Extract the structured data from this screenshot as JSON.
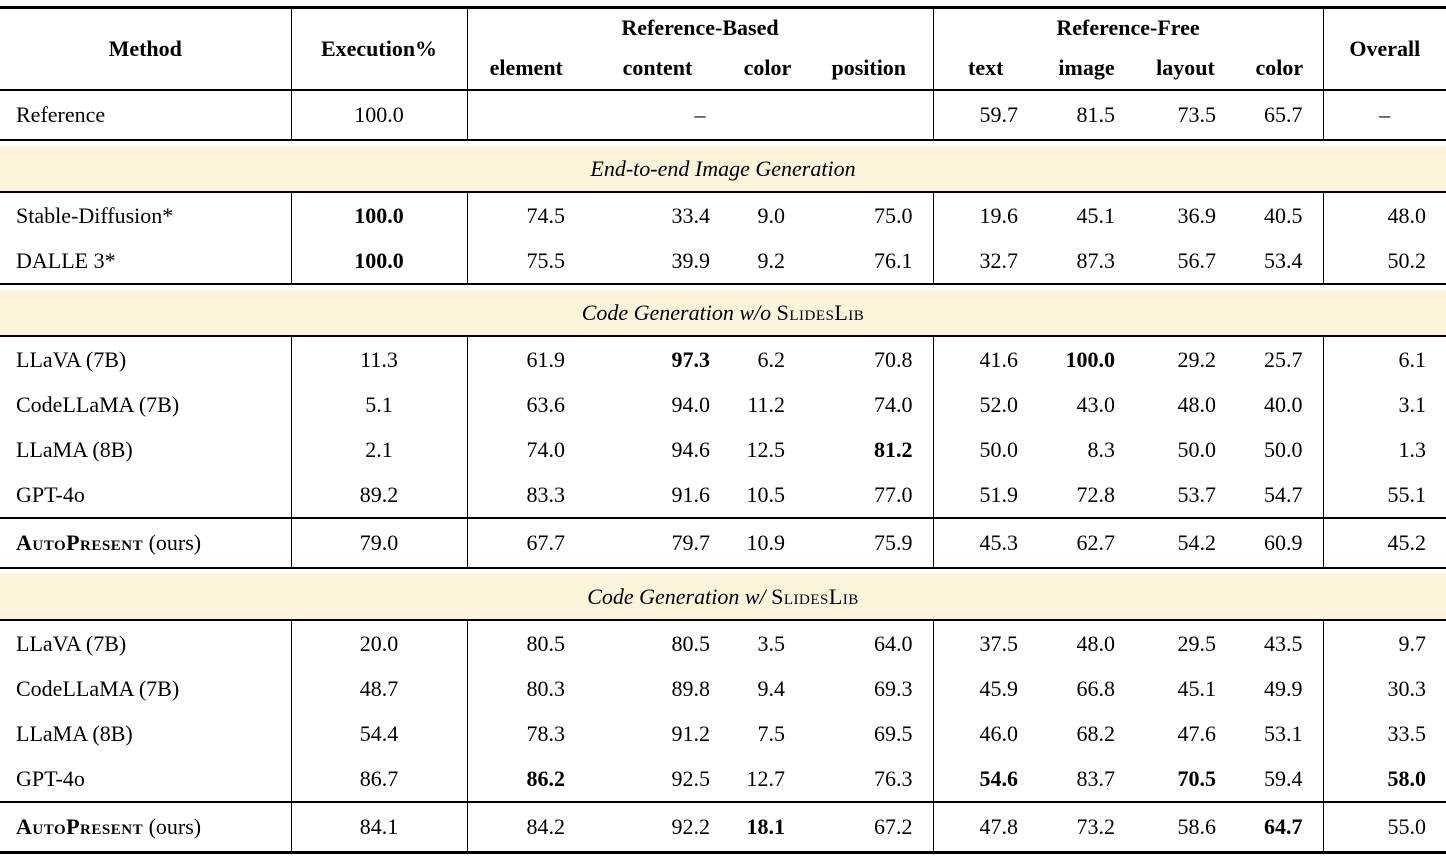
{
  "colors": {
    "band_bg": "#fbf3da",
    "rule": "#000000",
    "text_color": "#000000",
    "page_bg": "#ffffff"
  },
  "header": {
    "method": "Method",
    "execution": "Execution%",
    "ref_based": {
      "label": "Reference-Based",
      "cols": [
        "element",
        "content",
        "color",
        "position"
      ]
    },
    "ref_free": {
      "label": "Reference-Free",
      "cols": [
        "text",
        "image",
        "layout",
        "color"
      ]
    },
    "overall": "Overall"
  },
  "reference_row": {
    "method": "Reference",
    "execution": "100.0",
    "ref_based_merged": "–",
    "ref_free": [
      "59.7",
      "81.5",
      "73.5",
      "65.7"
    ],
    "overall": "–"
  },
  "sections": [
    {
      "title_parts": [
        {
          "text": "End-to-end Image Generation",
          "style": "italic"
        }
      ],
      "groups": [
        [
          {
            "method": [
              {
                "text": "Stable-Diffusion*",
                "style": "plain"
              }
            ],
            "cells": [
              {
                "v": "100.0",
                "b": true
              },
              {
                "v": "74.5"
              },
              {
                "v": "33.4"
              },
              {
                "v": "9.0"
              },
              {
                "v": "75.0"
              },
              {
                "v": "19.6"
              },
              {
                "v": "45.1"
              },
              {
                "v": "36.9"
              },
              {
                "v": "40.5"
              },
              {
                "v": "48.0"
              }
            ]
          },
          {
            "method": [
              {
                "text": "DALLE 3*",
                "style": "plain"
              }
            ],
            "cells": [
              {
                "v": "100.0",
                "b": true
              },
              {
                "v": "75.5"
              },
              {
                "v": "39.9"
              },
              {
                "v": "9.2"
              },
              {
                "v": "76.1"
              },
              {
                "v": "32.7"
              },
              {
                "v": "87.3"
              },
              {
                "v": "56.7"
              },
              {
                "v": "53.4"
              },
              {
                "v": "50.2"
              }
            ]
          }
        ]
      ]
    },
    {
      "title_parts": [
        {
          "text": "Code Generation w/o ",
          "style": "italic"
        },
        {
          "text": "SlidesLib",
          "style": "smallcaps"
        }
      ],
      "groups": [
        [
          {
            "method": [
              {
                "text": "LLaVA (7B)",
                "style": "plain"
              }
            ],
            "cells": [
              {
                "v": "11.3"
              },
              {
                "v": "61.9"
              },
              {
                "v": "97.3",
                "b": true
              },
              {
                "v": "6.2"
              },
              {
                "v": "70.8"
              },
              {
                "v": "41.6"
              },
              {
                "v": "100.0",
                "b": true
              },
              {
                "v": "29.2"
              },
              {
                "v": "25.7"
              },
              {
                "v": "6.1"
              }
            ]
          },
          {
            "method": [
              {
                "text": "CodeLLaMA (7B)",
                "style": "plain"
              }
            ],
            "cells": [
              {
                "v": "5.1"
              },
              {
                "v": "63.6"
              },
              {
                "v": "94.0"
              },
              {
                "v": "11.2"
              },
              {
                "v": "74.0"
              },
              {
                "v": "52.0"
              },
              {
                "v": "43.0"
              },
              {
                "v": "48.0"
              },
              {
                "v": "40.0"
              },
              {
                "v": "3.1"
              }
            ]
          },
          {
            "method": [
              {
                "text": "LLaMA (8B)",
                "style": "plain"
              }
            ],
            "cells": [
              {
                "v": "2.1"
              },
              {
                "v": "74.0"
              },
              {
                "v": "94.6"
              },
              {
                "v": "12.5"
              },
              {
                "v": "81.2",
                "b": true
              },
              {
                "v": "50.0"
              },
              {
                "v": "8.3"
              },
              {
                "v": "50.0"
              },
              {
                "v": "50.0"
              },
              {
                "v": "1.3"
              }
            ]
          },
          {
            "method": [
              {
                "text": "GPT-4o",
                "style": "plain"
              }
            ],
            "cells": [
              {
                "v": "89.2"
              },
              {
                "v": "83.3"
              },
              {
                "v": "91.6"
              },
              {
                "v": "10.5"
              },
              {
                "v": "77.0"
              },
              {
                "v": "51.9"
              },
              {
                "v": "72.8"
              },
              {
                "v": "53.7"
              },
              {
                "v": "54.7"
              },
              {
                "v": "55.1"
              }
            ]
          }
        ],
        [
          {
            "method": [
              {
                "text": "AutoPresent",
                "style": "bold-smallcaps"
              },
              {
                "text": " (ours)",
                "style": "plain"
              }
            ],
            "cells": [
              {
                "v": "79.0"
              },
              {
                "v": "67.7"
              },
              {
                "v": "79.7"
              },
              {
                "v": "10.9"
              },
              {
                "v": "75.9"
              },
              {
                "v": "45.3"
              },
              {
                "v": "62.7"
              },
              {
                "v": "54.2"
              },
              {
                "v": "60.9"
              },
              {
                "v": "45.2"
              }
            ]
          }
        ]
      ]
    },
    {
      "title_parts": [
        {
          "text": "Code Generation w/ ",
          "style": "italic"
        },
        {
          "text": "SlidesLib",
          "style": "smallcaps"
        }
      ],
      "groups": [
        [
          {
            "method": [
              {
                "text": "LLaVA (7B)",
                "style": "plain"
              }
            ],
            "cells": [
              {
                "v": "20.0"
              },
              {
                "v": "80.5"
              },
              {
                "v": "80.5"
              },
              {
                "v": "3.5"
              },
              {
                "v": "64.0"
              },
              {
                "v": "37.5"
              },
              {
                "v": "48.0"
              },
              {
                "v": "29.5"
              },
              {
                "v": "43.5"
              },
              {
                "v": "9.7"
              }
            ]
          },
          {
            "method": [
              {
                "text": "CodeLLaMA (7B)",
                "style": "plain"
              }
            ],
            "cells": [
              {
                "v": "48.7"
              },
              {
                "v": "80.3"
              },
              {
                "v": "89.8"
              },
              {
                "v": "9.4"
              },
              {
                "v": "69.3"
              },
              {
                "v": "45.9"
              },
              {
                "v": "66.8"
              },
              {
                "v": "45.1"
              },
              {
                "v": "49.9"
              },
              {
                "v": "30.3"
              }
            ]
          },
          {
            "method": [
              {
                "text": "LLaMA (8B)",
                "style": "plain"
              }
            ],
            "cells": [
              {
                "v": "54.4"
              },
              {
                "v": "78.3"
              },
              {
                "v": "91.2"
              },
              {
                "v": "7.5"
              },
              {
                "v": "69.5"
              },
              {
                "v": "46.0"
              },
              {
                "v": "68.2"
              },
              {
                "v": "47.6"
              },
              {
                "v": "53.1"
              },
              {
                "v": "33.5"
              }
            ]
          },
          {
            "method": [
              {
                "text": "GPT-4o",
                "style": "plain"
              }
            ],
            "cells": [
              {
                "v": "86.7"
              },
              {
                "v": "86.2",
                "b": true
              },
              {
                "v": "92.5"
              },
              {
                "v": "12.7"
              },
              {
                "v": "76.3"
              },
              {
                "v": "54.6",
                "b": true
              },
              {
                "v": "83.7"
              },
              {
                "v": "70.5",
                "b": true
              },
              {
                "v": "59.4"
              },
              {
                "v": "58.0",
                "b": true
              }
            ]
          }
        ],
        [
          {
            "method": [
              {
                "text": "AutoPresent",
                "style": "bold-smallcaps"
              },
              {
                "text": " (ours)",
                "style": "plain"
              }
            ],
            "cells": [
              {
                "v": "84.1"
              },
              {
                "v": "84.2"
              },
              {
                "v": "92.2"
              },
              {
                "v": "18.1",
                "b": true
              },
              {
                "v": "67.2"
              },
              {
                "v": "47.8"
              },
              {
                "v": "73.2"
              },
              {
                "v": "58.6"
              },
              {
                "v": "64.7",
                "b": true
              },
              {
                "v": "55.0"
              }
            ]
          }
        ]
      ]
    }
  ]
}
